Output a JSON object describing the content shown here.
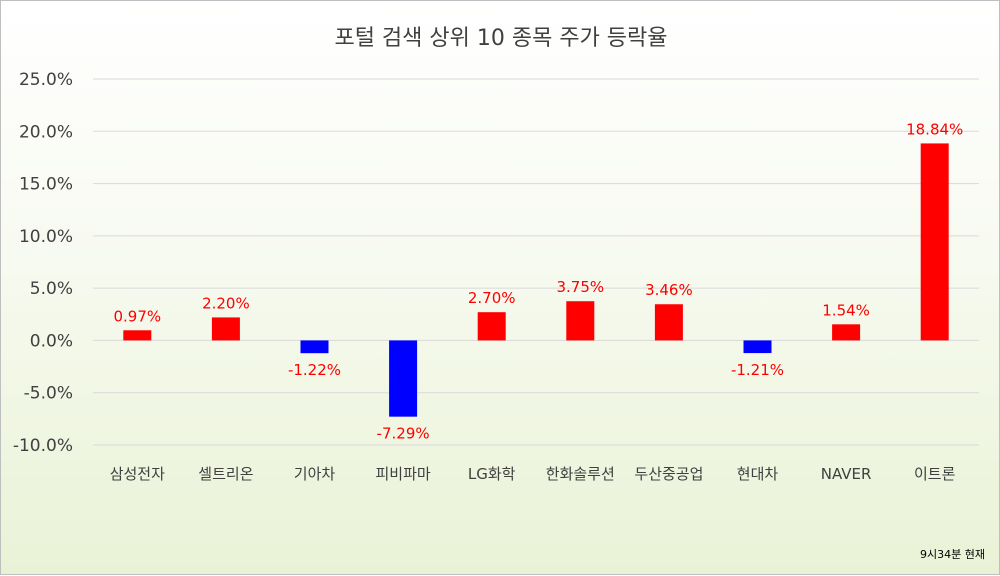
{
  "chart_data": {
    "type": "bar",
    "title": "포털 검색 상위 10 종목 주가 등락율",
    "categories": [
      "삼성전자",
      "셀트리온",
      "기아차",
      "피비파마",
      "LG화학",
      "한화솔루션",
      "두산중공업",
      "현대차",
      "NAVER",
      "이트론"
    ],
    "values": [
      0.97,
      2.2,
      -1.22,
      -7.29,
      2.7,
      3.75,
      3.46,
      -1.21,
      1.54,
      18.84
    ],
    "data_labels": [
      "0.97%",
      "2.20%",
      "-1.22%",
      "-7.29%",
      "2.70%",
      "3.75%",
      "3.46%",
      "-1.21%",
      "1.54%",
      "18.84%"
    ],
    "yticks": [
      "25.0%",
      "20.0%",
      "15.0%",
      "10.0%",
      "5.0%",
      "0.0%",
      "-5.0%",
      "-10.0%"
    ],
    "ylim": [
      -10,
      25
    ],
    "grid": true,
    "colors": {
      "positive": "#ff0000",
      "negative": "#0000ff"
    },
    "note": "9시34분 현재"
  }
}
